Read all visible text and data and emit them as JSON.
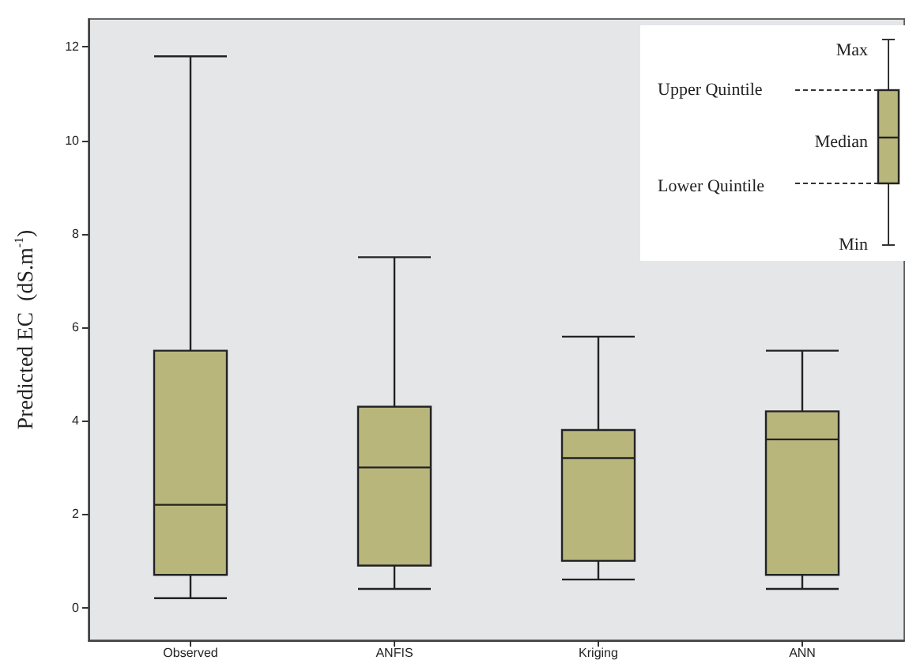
{
  "chart_data": {
    "type": "box",
    "ylabel": "Predicted EC  (dS.m$^{-1}$)",
    "categories": [
      "Observed",
      "ANFIS",
      "Kriging",
      "ANN"
    ],
    "series": [
      {
        "color": "#b9b67c",
        "boxes": [
          {
            "low": 0.2,
            "q1": 0.7,
            "median": 2.2,
            "q3": 5.5,
            "high": 11.8
          },
          {
            "low": 0.4,
            "q1": 0.9,
            "median": 3.0,
            "q3": 4.3,
            "high": 7.5
          },
          {
            "low": 0.6,
            "q1": 1.0,
            "median": 3.2,
            "q3": 3.8,
            "high": 5.8
          },
          {
            "low": 0.4,
            "q1": 0.7,
            "median": 3.6,
            "q3": 4.2,
            "high": 5.5
          }
        ]
      }
    ],
    "ylim": [
      -0.7,
      12.6
    ],
    "yticks": [
      0,
      2,
      4,
      6,
      8,
      10,
      12
    ],
    "grid": false,
    "annotations": [
      "Max",
      "Upper Quintile",
      "Median",
      "Lower Quintile",
      "Min"
    ]
  }
}
